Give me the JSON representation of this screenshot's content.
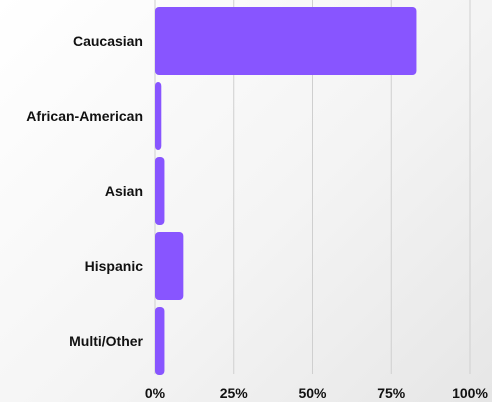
{
  "chart_data": {
    "type": "bar",
    "orientation": "horizontal",
    "categories": [
      "Caucasian",
      "African-American",
      "Asian",
      "Hispanic",
      "Multi/Other"
    ],
    "values": [
      83,
      2,
      3,
      9,
      3
    ],
    "xlim": [
      0,
      100
    ],
    "x_ticks": [
      "0%",
      "25%",
      "50%",
      "75%",
      "100%"
    ],
    "grid": "vertical",
    "title": "",
    "xlabel": "",
    "ylabel": "",
    "colors": {
      "bar": "#8855ff",
      "grid": "#cfcfcf",
      "text": "#111111"
    }
  }
}
